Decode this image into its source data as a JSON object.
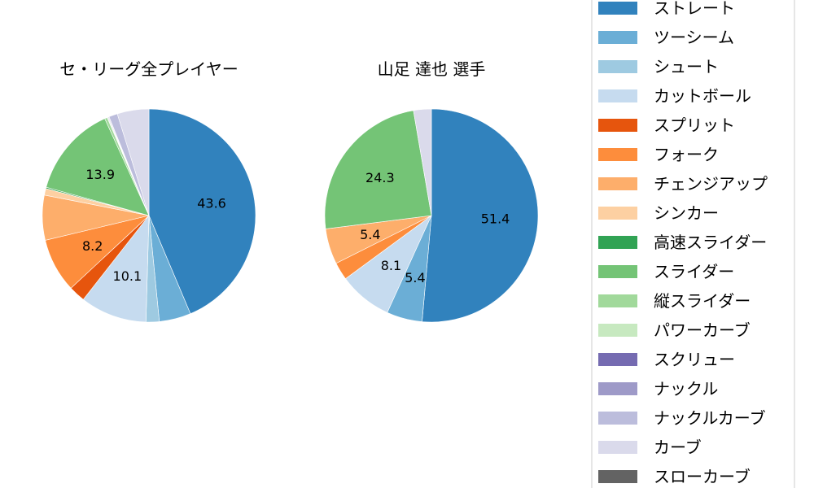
{
  "chart_data": [
    {
      "type": "pie",
      "title": "セ・リーグ全プレイヤー",
      "categories": [
        "ストレート",
        "ツーシーム",
        "シュート",
        "カットボール",
        "スプリット",
        "フォーク",
        "チェンジアップ",
        "シンカー",
        "高速スライダー",
        "スライダー",
        "縦スライダー",
        "パワーカーブ",
        "スクリュー",
        "ナックル",
        "ナックルカーブ",
        "カーブ"
      ],
      "values": [
        43.6,
        4.8,
        2.0,
        10.1,
        2.5,
        8.2,
        6.8,
        1.0,
        0.2,
        13.9,
        0.4,
        0.1,
        0.1,
        0.1,
        1.3,
        4.8
      ],
      "labels": [
        "43.6",
        "",
        "",
        "10.1",
        "",
        "8.2",
        "",
        "",
        "",
        "13.9",
        "",
        "",
        "",
        "",
        "",
        ""
      ]
    },
    {
      "type": "pie",
      "title": "山足 達也  選手",
      "categories": [
        "ストレート",
        "ツーシーム",
        "カットボール",
        "フォーク",
        "チェンジアップ",
        "スライダー",
        "カーブ"
      ],
      "values": [
        51.4,
        5.4,
        8.1,
        2.7,
        5.4,
        24.3,
        2.7
      ],
      "labels": [
        "51.4",
        "5.4",
        "8.1",
        "",
        "5.4",
        "24.3",
        ""
      ]
    }
  ],
  "legend": {
    "placement": "right",
    "items": [
      {
        "label": "ストレート",
        "color": "#3182bd"
      },
      {
        "label": "ツーシーム",
        "color": "#6baed6"
      },
      {
        "label": "シュート",
        "color": "#9ecae1"
      },
      {
        "label": "カットボール",
        "color": "#c6dbef"
      },
      {
        "label": "スプリット",
        "color": "#e6550d"
      },
      {
        "label": "フォーク",
        "color": "#fd8d3c"
      },
      {
        "label": "チェンジアップ",
        "color": "#fdae6b"
      },
      {
        "label": "シンカー",
        "color": "#fdd0a2"
      },
      {
        "label": "高速スライダー",
        "color": "#31a354"
      },
      {
        "label": "スライダー",
        "color": "#74c476"
      },
      {
        "label": "縦スライダー",
        "color": "#a1d99b"
      },
      {
        "label": "パワーカーブ",
        "color": "#c7e9c0"
      },
      {
        "label": "スクリュー",
        "color": "#756bb1"
      },
      {
        "label": "ナックル",
        "color": "#9e9ac8"
      },
      {
        "label": "ナックルカーブ",
        "color": "#bcbddc"
      },
      {
        "label": "カーブ",
        "color": "#dadaeb"
      },
      {
        "label": "スローカーブ",
        "color": "#636363"
      }
    ]
  }
}
